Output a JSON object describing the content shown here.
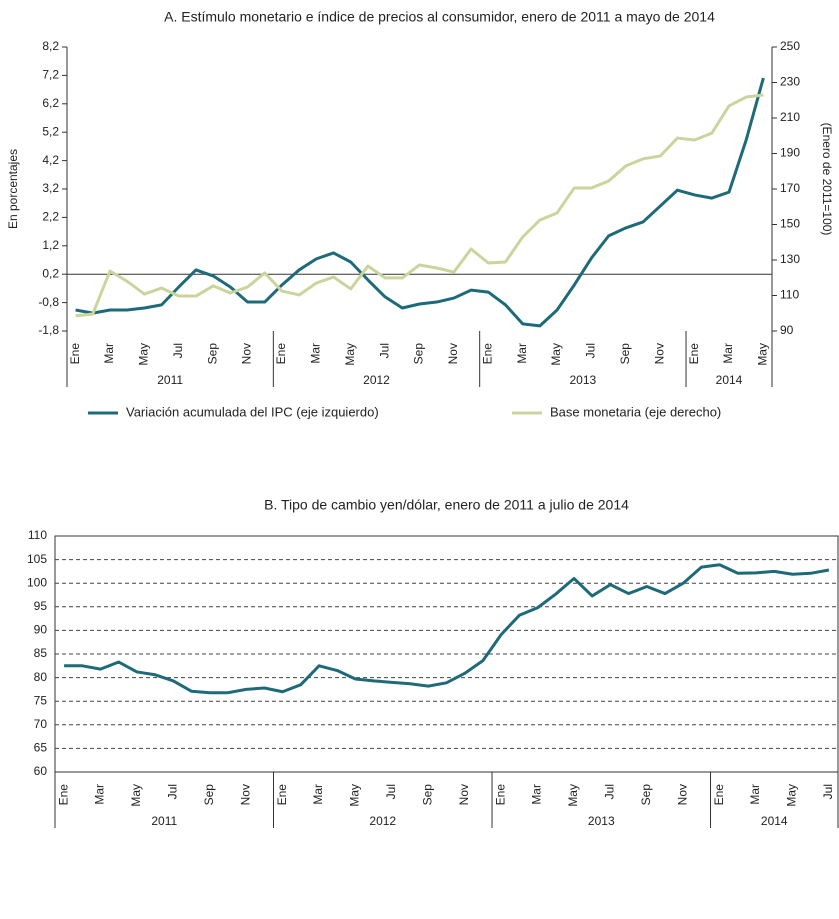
{
  "chart_data": [
    {
      "type": "line",
      "title": "A. Estímulo monetario e índice de precios al consumidor, enero de 2011 a mayo de 2014",
      "y_label": "En porcentajes",
      "y2_label": "(Enero de 2011=100)",
      "categories": [
        "Ene",
        null,
        "Mar",
        null,
        "May",
        null,
        "Jul",
        null,
        "Sep",
        null,
        "Nov",
        null,
        "Ene",
        null,
        "Mar",
        null,
        "May",
        null,
        "Jul",
        null,
        "Sep",
        null,
        "Nov",
        null,
        "Ene",
        null,
        "Mar",
        null,
        "May",
        null,
        "Jul",
        null,
        "Sep",
        null,
        "Nov",
        null,
        "Ene",
        null,
        "Mar",
        null,
        "May"
      ],
      "groups": [
        "2011",
        "2012",
        "2013",
        "2014"
      ],
      "ylim": [
        -1.8,
        8.2
      ],
      "yticks": [
        {
          "value": -1.8,
          "label": "-1,8"
        },
        {
          "value": -0.8,
          "label": "-0,8"
        },
        {
          "value": 0.2,
          "label": "0,2"
        },
        {
          "value": 1.2,
          "label": "1,2"
        },
        {
          "value": 2.2,
          "label": "2,2"
        },
        {
          "value": 3.2,
          "label": "3,2"
        },
        {
          "value": 4.2,
          "label": "4,2"
        },
        {
          "value": 5.2,
          "label": "5,2"
        },
        {
          "value": 6.2,
          "label": "6,2"
        },
        {
          "value": 7.2,
          "label": "7,2"
        },
        {
          "value": 8.2,
          "label": "8,2"
        }
      ],
      "y2lim": [
        90,
        250
      ],
      "y2ticks": [
        90,
        110,
        130,
        150,
        170,
        190,
        210,
        230,
        250
      ],
      "baseline": 0.2,
      "legend": "bottom",
      "series": [
        {
          "name": "Variación acumulada del IPC (eje izquierdo)",
          "color": "#1e6a78",
          "values": [
            -1.06,
            -1.17,
            -1.06,
            -1.06,
            -0.99,
            -0.88,
            -0.25,
            0.35,
            0.14,
            -0.25,
            -0.78,
            -0.78,
            -0.18,
            0.35,
            0.74,
            0.95,
            0.63,
            0.0,
            -0.6,
            -0.99,
            -0.85,
            -0.78,
            -0.64,
            -0.36,
            -0.43,
            -0.88,
            -1.55,
            -1.62,
            -1.06,
            -0.18,
            0.77,
            1.55,
            1.83,
            2.04,
            2.6,
            3.16,
            2.99,
            2.88,
            3.09,
            4.93,
            7.11
          ]
        },
        {
          "name": "Base monetaria (eje derecho)",
          "color": "#cbd49c",
          "axis": "y2",
          "values": [
            98.5,
            99.6,
            123.8,
            118,
            110.8,
            114.2,
            109.7,
            109.7,
            115.4,
            111.4,
            114.8,
            122.7,
            112.5,
            110.3,
            117,
            120.4,
            113.7,
            126.6,
            119.9,
            119.9,
            127.2,
            125.5,
            123.2,
            136.2,
            128.3,
            128.9,
            143,
            152.5,
            156.5,
            170.6,
            170.6,
            174.5,
            183,
            187,
            188.6,
            198.7,
            197.6,
            201.5,
            216.8,
            221.8,
            223
          ]
        }
      ]
    },
    {
      "type": "line",
      "title": "B. Tipo de cambio yen/dólar, enero de 2011 a julio de 2014",
      "categories": [
        "Ene",
        null,
        "Mar",
        null,
        "May",
        null,
        "Jul",
        null,
        "Sep",
        null,
        "Nov",
        null,
        "Ene",
        null,
        "Mar",
        null,
        "May",
        null,
        "Jul",
        null,
        "Sep",
        null,
        "Nov",
        null,
        "Ene",
        null,
        "Mar",
        null,
        "May",
        null,
        "Jul",
        null,
        "Sep",
        null,
        "Nov",
        null,
        "Ene",
        null,
        "Mar",
        null,
        "May",
        null,
        "Jul"
      ],
      "groups": [
        "2011",
        "2012",
        "2013",
        "2014"
      ],
      "ylim": [
        60,
        110
      ],
      "yticks": [
        60,
        65,
        70,
        75,
        80,
        85,
        90,
        95,
        100,
        105,
        110
      ],
      "grid": true,
      "series": [
        {
          "color": "#1e6a78",
          "values": [
            82.5,
            82.5,
            81.8,
            83.3,
            81.2,
            80.6,
            79.3,
            77.1,
            76.8,
            76.8,
            77.5,
            77.8,
            77,
            78.5,
            82.5,
            81.5,
            79.7,
            79.3,
            79,
            78.7,
            78.2,
            78.9,
            80.9,
            83.6,
            89.1,
            93.2,
            94.8,
            97.7,
            101,
            97.3,
            99.7,
            97.8,
            99.3,
            97.8,
            100,
            103.4,
            103.9,
            102.1,
            102.2,
            102.5,
            101.9,
            102.1,
            102.8
          ]
        }
      ]
    }
  ]
}
